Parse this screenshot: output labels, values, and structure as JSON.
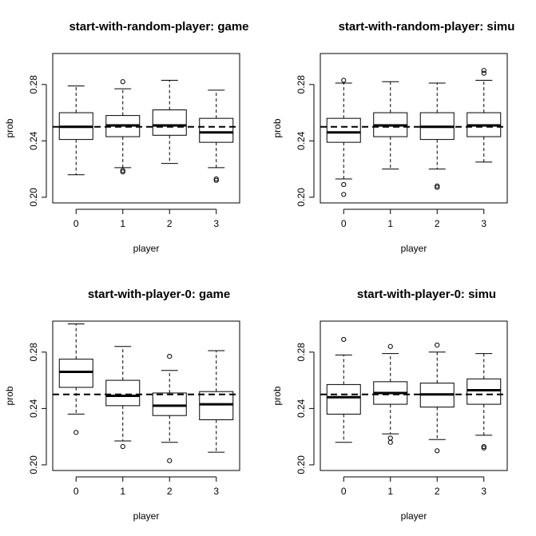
{
  "chart_data": [
    {
      "type": "boxplot",
      "title": "start-with-random-player: game",
      "xlabel": "player",
      "ylabel": "prob",
      "ylim": [
        0.196,
        0.302
      ],
      "yticks": [
        "0.20",
        "0.24",
        "0.28"
      ],
      "reference_line": 0.25,
      "boxes": [
        {
          "category": "0",
          "lower_whisker": 0.216,
          "q1": 0.241,
          "median": 0.25,
          "q3": 0.26,
          "upper_whisker": 0.279,
          "outliers": []
        },
        {
          "category": "1",
          "lower_whisker": 0.221,
          "q1": 0.243,
          "median": 0.251,
          "q3": 0.258,
          "upper_whisker": 0.277,
          "outliers": [
            0.282,
            0.219,
            0.218
          ]
        },
        {
          "category": "2",
          "lower_whisker": 0.224,
          "q1": 0.244,
          "median": 0.251,
          "q3": 0.262,
          "upper_whisker": 0.283,
          "outliers": []
        },
        {
          "category": "3",
          "lower_whisker": 0.221,
          "q1": 0.239,
          "median": 0.246,
          "q3": 0.256,
          "upper_whisker": 0.276,
          "outliers": [
            0.213,
            0.212
          ]
        }
      ]
    },
    {
      "type": "boxplot",
      "title": "start-with-random-player: simu",
      "xlabel": "player",
      "ylabel": "prob",
      "ylim": [
        0.196,
        0.302
      ],
      "yticks": [
        "0.20",
        "0.24",
        "0.28"
      ],
      "reference_line": 0.25,
      "boxes": [
        {
          "category": "0",
          "lower_whisker": 0.213,
          "q1": 0.239,
          "median": 0.246,
          "q3": 0.256,
          "upper_whisker": 0.281,
          "outliers": [
            0.283,
            0.209,
            0.202
          ]
        },
        {
          "category": "1",
          "lower_whisker": 0.22,
          "q1": 0.243,
          "median": 0.251,
          "q3": 0.26,
          "upper_whisker": 0.282,
          "outliers": []
        },
        {
          "category": "2",
          "lower_whisker": 0.22,
          "q1": 0.241,
          "median": 0.25,
          "q3": 0.26,
          "upper_whisker": 0.281,
          "outliers": [
            0.208,
            0.207
          ]
        },
        {
          "category": "3",
          "lower_whisker": 0.225,
          "q1": 0.243,
          "median": 0.251,
          "q3": 0.26,
          "upper_whisker": 0.283,
          "outliers": [
            0.29,
            0.288
          ]
        }
      ]
    },
    {
      "type": "boxplot",
      "title": "start-with-player-0: game",
      "xlabel": "player",
      "ylabel": "prob",
      "ylim": [
        0.196,
        0.302
      ],
      "yticks": [
        "0.20",
        "0.24",
        "0.28"
      ],
      "reference_line": 0.25,
      "boxes": [
        {
          "category": "0",
          "lower_whisker": 0.236,
          "q1": 0.255,
          "median": 0.266,
          "q3": 0.275,
          "upper_whisker": 0.3,
          "outliers": [
            0.223
          ]
        },
        {
          "category": "1",
          "lower_whisker": 0.217,
          "q1": 0.242,
          "median": 0.249,
          "q3": 0.26,
          "upper_whisker": 0.284,
          "outliers": [
            0.213
          ]
        },
        {
          "category": "2",
          "lower_whisker": 0.216,
          "q1": 0.235,
          "median": 0.242,
          "q3": 0.251,
          "upper_whisker": 0.267,
          "outliers": [
            0.277,
            0.203
          ]
        },
        {
          "category": "3",
          "lower_whisker": 0.209,
          "q1": 0.232,
          "median": 0.243,
          "q3": 0.252,
          "upper_whisker": 0.281,
          "outliers": []
        }
      ]
    },
    {
      "type": "boxplot",
      "title": "start-with-player-0: simu",
      "xlabel": "player",
      "ylabel": "prob",
      "ylim": [
        0.196,
        0.302
      ],
      "yticks": [
        "0.20",
        "0.24",
        "0.28"
      ],
      "reference_line": 0.25,
      "boxes": [
        {
          "category": "0",
          "lower_whisker": 0.216,
          "q1": 0.236,
          "median": 0.248,
          "q3": 0.257,
          "upper_whisker": 0.278,
          "outliers": [
            0.289
          ]
        },
        {
          "category": "1",
          "lower_whisker": 0.222,
          "q1": 0.243,
          "median": 0.251,
          "q3": 0.259,
          "upper_whisker": 0.279,
          "outliers": [
            0.284,
            0.219,
            0.216
          ]
        },
        {
          "category": "2",
          "lower_whisker": 0.218,
          "q1": 0.241,
          "median": 0.25,
          "q3": 0.258,
          "upper_whisker": 0.28,
          "outliers": [
            0.285,
            0.21
          ]
        },
        {
          "category": "3",
          "lower_whisker": 0.221,
          "q1": 0.243,
          "median": 0.253,
          "q3": 0.261,
          "upper_whisker": 0.279,
          "outliers": [
            0.213,
            0.212
          ]
        }
      ]
    }
  ]
}
